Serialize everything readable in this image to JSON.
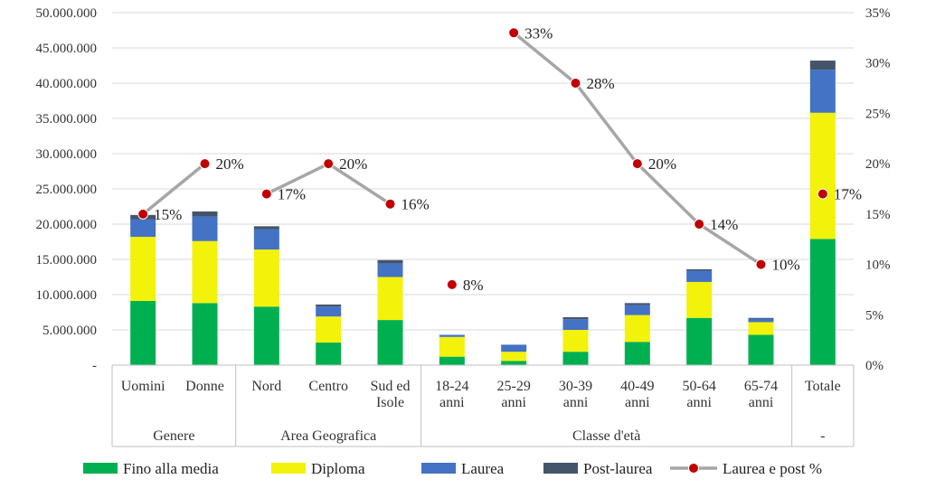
{
  "chart_data": {
    "type": "bar",
    "stacked": true,
    "groups": [
      {
        "label": "Genere",
        "categories": [
          "Uomini",
          "Donne"
        ]
      },
      {
        "label": "Area Geografica",
        "categories": [
          "Nord",
          "Centro",
          "Sud ed Isole"
        ]
      },
      {
        "label": "Classe d'età",
        "categories": [
          "18-24 anni",
          "25-29 anni",
          "30-39 anni",
          "40-49 anni",
          "50-64 anni",
          "65-74 anni"
        ]
      },
      {
        "label": "-",
        "categories": [
          "Totale"
        ]
      }
    ],
    "categories": [
      [
        "Uomini"
      ],
      [
        "Donne"
      ],
      [
        "Nord"
      ],
      [
        "Centro"
      ],
      [
        "Sud ed",
        "Isole"
      ],
      [
        "18-24",
        "anni"
      ],
      [
        "25-29",
        "anni"
      ],
      [
        "30-39",
        "anni"
      ],
      [
        "40-49",
        "anni"
      ],
      [
        "50-64",
        "anni"
      ],
      [
        "65-74",
        "anni"
      ],
      [
        "Totale"
      ]
    ],
    "series": [
      {
        "name": "Fino alla media",
        "color": "#00b050",
        "values": [
          9100000,
          8800000,
          8300000,
          3200000,
          6400000,
          1200000,
          600000,
          1900000,
          3300000,
          6700000,
          4300000,
          17900000
        ]
      },
      {
        "name": "Diploma",
        "color": "#f2f20a",
        "values": [
          9100000,
          8800000,
          8100000,
          3700000,
          6100000,
          2800000,
          1300000,
          3100000,
          3800000,
          5100000,
          1800000,
          17900000
        ]
      },
      {
        "name": "Laurea",
        "color": "#4472c4",
        "values": [
          2500000,
          3500000,
          2900000,
          1400000,
          1900000,
          300000,
          1000000,
          1500000,
          1400000,
          1600000,
          500000,
          6100000
        ]
      },
      {
        "name": "Post-laurea",
        "color": "#44546a",
        "values": [
          600000,
          700000,
          400000,
          300000,
          500000,
          0,
          0,
          300000,
          300000,
          200000,
          100000,
          1300000
        ]
      }
    ],
    "line_series": {
      "name": "Laurea e post %",
      "axis": "right",
      "color": "#a6a6a6",
      "marker_color": "#c00000",
      "values": [
        15,
        20,
        17,
        20,
        16,
        8,
        33,
        28,
        20,
        14,
        10,
        17
      ],
      "labels": [
        "15%",
        "20%",
        "17%",
        "20%",
        "16%",
        "8%",
        "33%",
        "28%",
        "20%",
        "14%",
        "10%",
        "17%"
      ],
      "segments": [
        [
          0,
          1
        ],
        [
          2,
          3,
          4
        ],
        [
          6,
          7,
          8,
          9,
          10
        ]
      ]
    },
    "y_left": {
      "min": 0,
      "max": 50000000,
      "ticks": [
        "-",
        "5.000.000",
        "10.000.000",
        "15.000.000",
        "20.000.000",
        "25.000.000",
        "30.000.000",
        "35.000.000",
        "40.000.000",
        "45.000.000",
        "50.000.000"
      ]
    },
    "y_right": {
      "min": 0,
      "max": 35,
      "ticks": [
        "0%",
        "5%",
        "10%",
        "15%",
        "20%",
        "25%",
        "30%",
        "35%"
      ]
    },
    "title": "",
    "xlabel": "",
    "ylabel": "",
    "grid": true,
    "legend": {
      "position": "bottom",
      "items": [
        "Fino alla media",
        "Diploma",
        "Laurea",
        "Post-laurea",
        "Laurea e post %"
      ]
    }
  }
}
